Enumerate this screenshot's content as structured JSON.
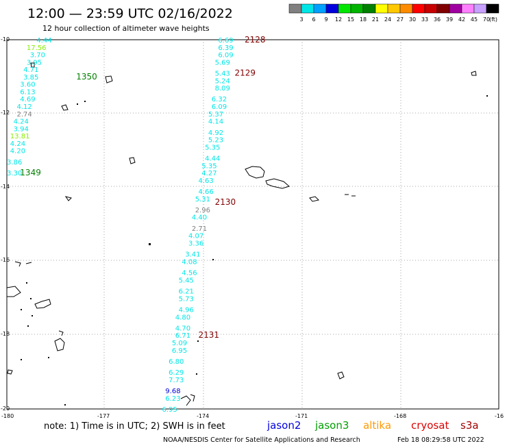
{
  "header": {
    "title": "12:00 — 23:59 UTC 02/16/2022",
    "subtitle": "12 hour collection of altimeter wave heights"
  },
  "colorbar": {
    "labels": [
      "3",
      "6",
      "9",
      "12",
      "15",
      "18",
      "21",
      "24",
      "27",
      "30",
      "33",
      "36",
      "39",
      "42",
      "45",
      "70"
    ],
    "unit": "(ft)",
    "colors": [
      "#808080",
      "#00e6e6",
      "#00a0ff",
      "#0000dd",
      "#00e600",
      "#00b400",
      "#008000",
      "#ffff00",
      "#ffc800",
      "#ff8c00",
      "#ff0000",
      "#c80000",
      "#800000",
      "#a000a0",
      "#ff80ff",
      "#c8a0ff",
      "#000000"
    ]
  },
  "axes": {
    "lon_labels": [
      "-180",
      "-177",
      "-174",
      "-171",
      "-168",
      "-16"
    ],
    "lat_labels": [
      "-10",
      "-12",
      "-14",
      "-16",
      "-18",
      "-20"
    ]
  },
  "footer": {
    "note": "note:  1) Time is in UTC;  2) SWH is in feet",
    "credit": "NOAA/NESDIS Center for Satellite Applications and Research",
    "timestamp": "Feb 18 08:29:58 UTC 2022"
  },
  "legend": [
    {
      "name": "jason2",
      "color": "#0000dd"
    },
    {
      "name": "jason3",
      "color": "#00a000"
    },
    {
      "name": "altika",
      "color": "#ff9900"
    },
    {
      "name": "cryosat",
      "color": "#dd0000"
    },
    {
      "name": "s3a",
      "color": "#a00000"
    }
  ],
  "passes": [
    {
      "label": "1350",
      "color": "#008000",
      "lon": -177.9,
      "lat": -11.0
    },
    {
      "label": "1349",
      "color": "#008000",
      "lon": -179.6,
      "lat": -13.6
    },
    {
      "label": "2128",
      "color": "#800000",
      "lon": -172.8,
      "lat": -10.0
    },
    {
      "label": "2129",
      "color": "#800000",
      "lon": -173.1,
      "lat": -10.9
    },
    {
      "label": "2130",
      "color": "#800000",
      "lon": -173.7,
      "lat": -14.4
    },
    {
      "label": "2131",
      "color": "#800000",
      "lon": -174.2,
      "lat": -18.0
    }
  ],
  "measurements": [
    {
      "v": "4.44",
      "c": "#00e6e6",
      "lon": -179.1,
      "lat": -10.0
    },
    {
      "v": "17.56",
      "c": "#88ee00",
      "lon": -179.4,
      "lat": -10.2
    },
    {
      "v": "3.70",
      "c": "#00e6e6",
      "lon": -179.3,
      "lat": -10.4
    },
    {
      "v": "3.95",
      "c": "#00e6e6",
      "lon": -179.4,
      "lat": -10.6
    },
    {
      "v": "4.71",
      "c": "#00e6e6",
      "lon": -179.5,
      "lat": -10.8
    },
    {
      "v": "3.85",
      "c": "#00e6e6",
      "lon": -179.5,
      "lat": -11.0
    },
    {
      "v": "3.60",
      "c": "#00e6e6",
      "lon": -179.6,
      "lat": -11.2
    },
    {
      "v": "6.13",
      "c": "#00e6e6",
      "lon": -179.6,
      "lat": -11.4
    },
    {
      "v": "4.69",
      "c": "#00e6e6",
      "lon": -179.6,
      "lat": -11.6
    },
    {
      "v": "4.12",
      "c": "#00e6e6",
      "lon": -179.7,
      "lat": -11.8
    },
    {
      "v": "2.74",
      "c": "#808080",
      "lon": -179.7,
      "lat": -12.0
    },
    {
      "v": "4.24",
      "c": "#00e6e6",
      "lon": -179.8,
      "lat": -12.2
    },
    {
      "v": "3.94",
      "c": "#00e6e6",
      "lon": -179.8,
      "lat": -12.4
    },
    {
      "v": "13.81",
      "c": "#88ee00",
      "lon": -179.9,
      "lat": -12.6
    },
    {
      "v": "4.24",
      "c": "#00e6e6",
      "lon": -179.9,
      "lat": -12.8
    },
    {
      "v": "4.20",
      "c": "#00e6e6",
      "lon": -179.9,
      "lat": -13.0
    },
    {
      "v": "3.86",
      "c": "#00e6e6",
      "lon": -180.0,
      "lat": -13.3
    },
    {
      "v": "3.30",
      "c": "#00e6e6",
      "lon": -180.0,
      "lat": -13.6
    },
    {
      "v": "6.69",
      "c": "#00e6e6",
      "lon": -173.6,
      "lat": -10.0
    },
    {
      "v": "6.39",
      "c": "#00e6e6",
      "lon": -173.6,
      "lat": -10.2
    },
    {
      "v": "6.09",
      "c": "#00e6e6",
      "lon": -173.6,
      "lat": -10.4
    },
    {
      "v": "5.69",
      "c": "#00e6e6",
      "lon": -173.7,
      "lat": -10.6
    },
    {
      "v": "5.43",
      "c": "#00e6e6",
      "lon": -173.7,
      "lat": -10.9
    },
    {
      "v": "5.24",
      "c": "#00e6e6",
      "lon": -173.7,
      "lat": -11.1
    },
    {
      "v": "8.09",
      "c": "#00e6e6",
      "lon": -173.7,
      "lat": -11.3
    },
    {
      "v": "6.32",
      "c": "#00e6e6",
      "lon": -173.8,
      "lat": -11.6
    },
    {
      "v": "6.09",
      "c": "#00e6e6",
      "lon": -173.8,
      "lat": -11.8
    },
    {
      "v": "5.37",
      "c": "#00e6e6",
      "lon": -173.9,
      "lat": -12.0
    },
    {
      "v": "4.14",
      "c": "#00e6e6",
      "lon": -173.9,
      "lat": -12.2
    },
    {
      "v": "4.92",
      "c": "#00e6e6",
      "lon": -173.9,
      "lat": -12.5
    },
    {
      "v": "5.23",
      "c": "#00e6e6",
      "lon": -173.9,
      "lat": -12.7
    },
    {
      "v": "5.35",
      "c": "#00e6e6",
      "lon": -174.0,
      "lat": -12.9
    },
    {
      "v": "4.44",
      "c": "#00e6e6",
      "lon": -174.0,
      "lat": -13.2
    },
    {
      "v": "5.35",
      "c": "#00e6e6",
      "lon": -174.1,
      "lat": -13.4
    },
    {
      "v": "4.27",
      "c": "#00e6e6",
      "lon": -174.1,
      "lat": -13.6
    },
    {
      "v": "4.63",
      "c": "#00e6e6",
      "lon": -174.2,
      "lat": -13.8
    },
    {
      "v": "4.66",
      "c": "#00e6e6",
      "lon": -174.2,
      "lat": -14.1
    },
    {
      "v": "5.31",
      "c": "#00e6e6",
      "lon": -174.3,
      "lat": -14.3
    },
    {
      "v": "2.96",
      "c": "#808080",
      "lon": -174.3,
      "lat": -14.6
    },
    {
      "v": "4.40",
      "c": "#00e6e6",
      "lon": -174.4,
      "lat": -14.8
    },
    {
      "v": "2.71",
      "c": "#808080",
      "lon": -174.4,
      "lat": -15.1
    },
    {
      "v": "4.07",
      "c": "#00e6e6",
      "lon": -174.5,
      "lat": -15.3
    },
    {
      "v": "3.36",
      "c": "#00e6e6",
      "lon": -174.5,
      "lat": -15.5
    },
    {
      "v": "3.41",
      "c": "#00e6e6",
      "lon": -174.6,
      "lat": -15.8
    },
    {
      "v": "4.08",
      "c": "#00e6e6",
      "lon": -174.7,
      "lat": -16.0
    },
    {
      "v": "4.56",
      "c": "#00e6e6",
      "lon": -174.7,
      "lat": -16.3
    },
    {
      "v": "5.45",
      "c": "#00e6e6",
      "lon": -174.8,
      "lat": -16.5
    },
    {
      "v": "6.21",
      "c": "#00e6e6",
      "lon": -174.8,
      "lat": -16.8
    },
    {
      "v": "5.73",
      "c": "#00e6e6",
      "lon": -174.8,
      "lat": -17.0
    },
    {
      "v": "4.96",
      "c": "#00e6e6",
      "lon": -174.8,
      "lat": -17.3
    },
    {
      "v": "4.80",
      "c": "#00e6e6",
      "lon": -174.9,
      "lat": -17.5
    },
    {
      "v": "4.70",
      "c": "#00e6e6",
      "lon": -174.9,
      "lat": -17.8
    },
    {
      "v": "6.71",
      "c": "#00e6e6",
      "lon": -174.9,
      "lat": -18.0
    },
    {
      "v": "5.09",
      "c": "#00e6e6",
      "lon": -175.0,
      "lat": -18.2
    },
    {
      "v": "6.95",
      "c": "#00e6e6",
      "lon": -175.0,
      "lat": -18.4
    },
    {
      "v": "6.80",
      "c": "#00e6e6",
      "lon": -175.1,
      "lat": -18.7
    },
    {
      "v": "6.29",
      "c": "#00e6e6",
      "lon": -175.1,
      "lat": -19.0
    },
    {
      "v": "7.73",
      "c": "#00e6e6",
      "lon": -175.1,
      "lat": -19.2
    },
    {
      "v": "9.68",
      "c": "#0000dd",
      "lon": -175.2,
      "lat": -19.5
    },
    {
      "v": "6.23",
      "c": "#00e6e6",
      "lon": -175.2,
      "lat": -19.7
    },
    {
      "v": "6.95",
      "c": "#00e6e6",
      "lon": -175.3,
      "lat": -20.0
    }
  ]
}
